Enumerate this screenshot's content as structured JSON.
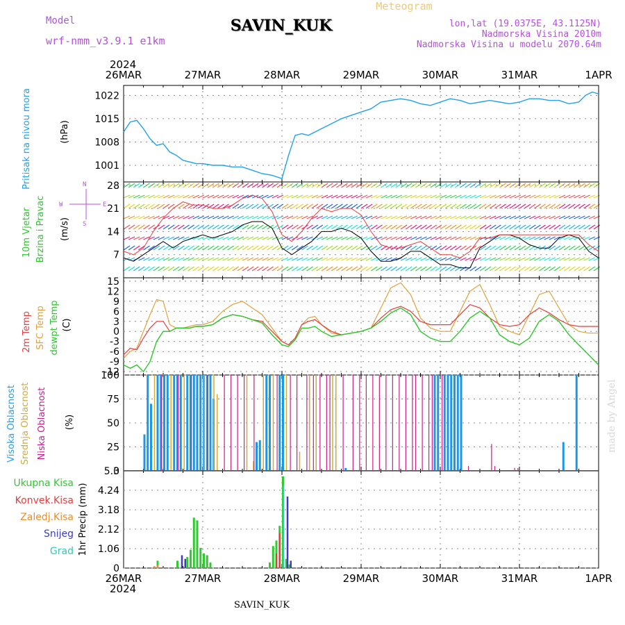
{
  "header": {
    "model_label": "Model",
    "model_name": "wrf-nmm_v3.9.1 e1km",
    "station": "SAVIN_KUK",
    "meteogram": "Meteogram",
    "lonlat": "lon,lat (19.0375E, 43.1125N)",
    "altitude": "Nadmorska Visina 2010m",
    "model_altitude": "Nadmorska Visina u modelu 2070.64m",
    "footer_station": "SAVIN_KUK",
    "credit": "made by Angel"
  },
  "time_axis": {
    "year": "2024",
    "labels": [
      "26MAR",
      "27MAR",
      "28MAR",
      "29MAR",
      "30MAR",
      "31MAR",
      "1APR"
    ],
    "range_hours": [
      0,
      144
    ]
  },
  "panels": {
    "pressure": {
      "title": "Pritisak na nivou mora",
      "unit": "(hPa)"
    },
    "wind": {
      "title1": "10m Vjetar",
      "title2": "Brzina i Pravac",
      "unit": "(m/s)",
      "compass": [
        "N",
        "E",
        "S",
        "W"
      ]
    },
    "temp": {
      "l1": "2m Temp",
      "l2": "SFC Temp",
      "l3": "dewpt Temp",
      "unit": "(C)"
    },
    "cloud": {
      "l1": "Visoka Oblacnost",
      "l2": "Srednja Oblacnost",
      "l3": "Niska Oblacnost",
      "unit": "(%)"
    },
    "precip": {
      "l1": "Ukupna Kisa",
      "l2": "Konvek.Kisa",
      "l3": "Zaledj.Kisa",
      "l4": "Snijeg",
      "l5": "Grad",
      "unit": "1hr Precip (mm)"
    }
  },
  "colors": {
    "pressure": "#1ea0f0",
    "t2m": "#e83c3c",
    "tsfc": "#e0a03c",
    "dewpt": "#28c828",
    "high_cloud": "#1e96e6",
    "mid_cloud": "#d2aa3c",
    "low_cloud": "#c81e8c",
    "total_rain": "#32c832",
    "conv_rain": "#e83c3c",
    "frz_rain": "#f08c28",
    "snow": "#3c3cc8",
    "hail": "#32c8b4",
    "purple_text": "#b450dc",
    "orange_text": "#f0c878"
  },
  "chart_data": [
    {
      "type": "line",
      "name": "pressure",
      "ylim": [
        996,
        1025
      ],
      "yticks": [
        "1001",
        "1008",
        "1015",
        "1022"
      ],
      "x": [
        0,
        2,
        4,
        6,
        8,
        10,
        12,
        14,
        16,
        18,
        20,
        22,
        24,
        27,
        30,
        33,
        36,
        39,
        42,
        45,
        48,
        50,
        52,
        54,
        56,
        58,
        60,
        63,
        66,
        69,
        72,
        75,
        78,
        81,
        84,
        87,
        90,
        93,
        96,
        99,
        102,
        105,
        108,
        111,
        114,
        117,
        120,
        123,
        126,
        129,
        132,
        135,
        138,
        140,
        142,
        144
      ],
      "y": [
        1011,
        1014,
        1014.5,
        1012,
        1009,
        1007,
        1007.5,
        1005,
        1004,
        1002.5,
        1002,
        1001.5,
        1001.5,
        1001,
        1001,
        1000.5,
        1000.5,
        999.5,
        998.5,
        998,
        997,
        1004,
        1010,
        1010.5,
        1010,
        1011,
        1012,
        1013.5,
        1015,
        1016,
        1017,
        1018,
        1020,
        1020.5,
        1021,
        1020.5,
        1019.5,
        1019,
        1020,
        1021,
        1020.5,
        1019.5,
        1020,
        1020.5,
        1020,
        1019.5,
        1020,
        1021,
        1021,
        1020.5,
        1020.5,
        1019.5,
        1020,
        1022,
        1023,
        1022.5
      ]
    },
    {
      "type": "line",
      "name": "wind",
      "ylim": [
        0,
        29
      ],
      "yticks": [
        "7",
        "14",
        "21",
        "28"
      ],
      "x": [
        0,
        3,
        6,
        9,
        12,
        15,
        18,
        21,
        24,
        27,
        30,
        33,
        36,
        39,
        42,
        45,
        48,
        51,
        54,
        57,
        60,
        63,
        66,
        69,
        72,
        75,
        78,
        81,
        84,
        87,
        90,
        93,
        96,
        99,
        102,
        105,
        108,
        111,
        114,
        117,
        120,
        123,
        126,
        129,
        132,
        135,
        138,
        141,
        144
      ],
      "speed": [
        6,
        5,
        7,
        9,
        11,
        9,
        11,
        12,
        13,
        12,
        13,
        14,
        16,
        17,
        17,
        15,
        9,
        7,
        9,
        11,
        14,
        14,
        15,
        14,
        12,
        8,
        5,
        5,
        6,
        8,
        8,
        6,
        4,
        4,
        3,
        3,
        9,
        11,
        13,
        13,
        12,
        10,
        9,
        9,
        12,
        13,
        12,
        8,
        6
      ],
      "gust": [
        8,
        7,
        9,
        14,
        18,
        21,
        23,
        22,
        22,
        21,
        21,
        22,
        24,
        25,
        24,
        20,
        13,
        11,
        14,
        18,
        21,
        20,
        21,
        21,
        19,
        14,
        10,
        9,
        9,
        10,
        11,
        9,
        7,
        7,
        6,
        8,
        12,
        12,
        13,
        13,
        13,
        13,
        13,
        13,
        13,
        13,
        13,
        10,
        8
      ]
    },
    {
      "type": "line",
      "name": "temperature",
      "ylim": [
        -13,
        16
      ],
      "yticks": [
        "-12",
        "-9",
        "-6",
        "-3",
        "0",
        "3",
        "6",
        "9",
        "12",
        "15"
      ],
      "x": [
        0,
        2,
        4,
        6,
        8,
        10,
        12,
        14,
        16,
        18,
        20,
        22,
        24,
        27,
        30,
        33,
        36,
        39,
        42,
        45,
        48,
        50,
        52,
        54,
        56,
        58,
        60,
        63,
        66,
        69,
        72,
        75,
        78,
        81,
        84,
        87,
        90,
        93,
        96,
        99,
        102,
        105,
        108,
        111,
        114,
        117,
        120,
        123,
        126,
        129,
        132,
        135,
        138,
        141,
        144
      ],
      "t2m": [
        -7,
        -5,
        -5.5,
        -2,
        1,
        3,
        3,
        0,
        1,
        1,
        1,
        1.5,
        1.5,
        2,
        4,
        5,
        4.5,
        3.5,
        3,
        0,
        -3,
        -4,
        -2,
        2,
        3,
        3.5,
        2,
        0,
        -1,
        -0.5,
        0,
        1,
        4,
        6.5,
        7.5,
        6,
        3,
        2,
        2,
        2,
        5,
        8,
        7,
        4,
        2,
        1.5,
        2,
        5,
        7,
        5.5,
        3.5,
        2,
        1.5,
        1.5,
        1.5
      ],
      "tsfc": [
        -8,
        -6,
        -5,
        0,
        5,
        9.5,
        9,
        2,
        1,
        1,
        1.5,
        2,
        2,
        3,
        6,
        8,
        9,
        7,
        5,
        1,
        -3,
        -4,
        -2,
        2,
        4,
        4.5,
        2,
        -0.5,
        -1,
        -0.5,
        0,
        1,
        7,
        13,
        14.5,
        11,
        4,
        1,
        0,
        0,
        6,
        12,
        14,
        8,
        1.5,
        0,
        -1,
        5,
        11,
        12,
        7,
        2,
        0,
        -0.5,
        -0.5
      ],
      "dewpt": [
        -10,
        -11,
        -10,
        -12,
        -9,
        -3,
        0,
        0,
        1,
        1,
        1,
        1.5,
        1.5,
        2,
        4,
        5,
        4.5,
        3.5,
        2.5,
        -1,
        -4,
        -4.5,
        -2.5,
        1,
        1,
        1.5,
        0,
        -1.5,
        -1,
        -0.5,
        0,
        1,
        3,
        5.5,
        7,
        5,
        0,
        -2,
        -3,
        -3,
        0,
        4,
        6,
        4,
        -1,
        -3,
        -4,
        -2,
        3,
        5,
        3,
        -1,
        -4,
        -7,
        -10
      ]
    },
    {
      "type": "bar",
      "name": "cloud_cover",
      "ylim": [
        0,
        100
      ],
      "yticks": [
        "0",
        "25",
        "50",
        "75",
        "100"
      ],
      "high_cloud_hours": [
        [
          6,
          38
        ],
        [
          7,
          100
        ],
        [
          8,
          70
        ],
        [
          10,
          100
        ],
        [
          11,
          100
        ],
        [
          12,
          100
        ],
        [
          13,
          100
        ],
        [
          15,
          100
        ],
        [
          16,
          100
        ],
        [
          17,
          100
        ],
        [
          19,
          100
        ],
        [
          20,
          100
        ],
        [
          21,
          100
        ],
        [
          22,
          100
        ],
        [
          23,
          100
        ],
        [
          24,
          100
        ],
        [
          25,
          100
        ],
        [
          26,
          100
        ],
        [
          27,
          75
        ],
        [
          40,
          30
        ],
        [
          41,
          32
        ],
        [
          43,
          100
        ],
        [
          44,
          100
        ],
        [
          47,
          100
        ],
        [
          48,
          100
        ],
        [
          67,
          3
        ],
        [
          94,
          100
        ],
        [
          95,
          100
        ],
        [
          97,
          100
        ],
        [
          98,
          100
        ],
        [
          99,
          100
        ],
        [
          100,
          100
        ],
        [
          101,
          100
        ],
        [
          102,
          100
        ],
        [
          133,
          30
        ],
        [
          137,
          100
        ]
      ],
      "mid_cloud_hours": [
        [
          9,
          100
        ],
        [
          14,
          100
        ],
        [
          18,
          100
        ],
        [
          24,
          100
        ],
        [
          27,
          100
        ],
        [
          28,
          80
        ],
        [
          37,
          100
        ],
        [
          39,
          10
        ],
        [
          42,
          100
        ],
        [
          45,
          100
        ],
        [
          49,
          100
        ],
        [
          53,
          20
        ],
        [
          56,
          100
        ],
        [
          58,
          100
        ],
        [
          63,
          100
        ],
        [
          64,
          100
        ]
      ],
      "low_cloud_hours": [
        [
          11,
          100
        ],
        [
          16,
          100
        ],
        [
          20,
          100
        ],
        [
          25,
          100
        ],
        [
          30,
          100
        ],
        [
          32,
          100
        ],
        [
          34,
          100
        ],
        [
          36,
          100
        ],
        [
          39,
          100
        ],
        [
          46,
          100
        ],
        [
          50,
          100
        ],
        [
          52,
          100
        ],
        [
          55,
          100
        ],
        [
          57,
          100
        ],
        [
          59,
          100
        ],
        [
          61,
          100
        ],
        [
          62,
          100
        ],
        [
          66,
          100
        ],
        [
          69,
          100
        ],
        [
          71,
          100
        ],
        [
          73,
          100
        ],
        [
          75,
          100
        ],
        [
          77,
          100
        ],
        [
          79,
          100
        ],
        [
          81,
          100
        ],
        [
          83,
          100
        ],
        [
          85,
          100
        ],
        [
          87,
          100
        ],
        [
          88,
          100
        ],
        [
          90,
          100
        ],
        [
          92,
          100
        ],
        [
          93,
          100
        ],
        [
          96,
          100
        ],
        [
          104,
          5
        ],
        [
          111,
          28
        ],
        [
          112,
          5
        ],
        [
          118,
          3
        ],
        [
          119,
          3
        ]
      ]
    },
    {
      "type": "bar",
      "name": "precip",
      "ylim": [
        0,
        5.3
      ],
      "yticks": [
        "0",
        "1.06",
        "2.12",
        "3.18",
        "4.24",
        "5.3"
      ],
      "total_rain_hours": [
        [
          10,
          0.4
        ],
        [
          16,
          0.4
        ],
        [
          19,
          0.6
        ],
        [
          20,
          1.0
        ],
        [
          21,
          2.75
        ],
        [
          22,
          2.6
        ],
        [
          23,
          1.1
        ],
        [
          24,
          0.8
        ],
        [
          25,
          0.7
        ],
        [
          26,
          0.3
        ],
        [
          44,
          0.3
        ],
        [
          45,
          1.2
        ],
        [
          46,
          1.5
        ],
        [
          47,
          2.3
        ],
        [
          48,
          5.0
        ],
        [
          49,
          0.5
        ],
        [
          50,
          0.2
        ]
      ],
      "snow_hours": [
        [
          17,
          0.7
        ],
        [
          18,
          0.5
        ],
        [
          49,
          3.9
        ],
        [
          50,
          0.4
        ]
      ],
      "conv_rain_hours": [
        [
          46,
          0.8
        ],
        [
          47,
          1.9
        ]
      ],
      "frz_rain_hours": [
        [
          9,
          0.1
        ],
        [
          10,
          0.15
        ]
      ],
      "hail_hours": [
        [
          48,
          4.5
        ]
      ]
    }
  ]
}
